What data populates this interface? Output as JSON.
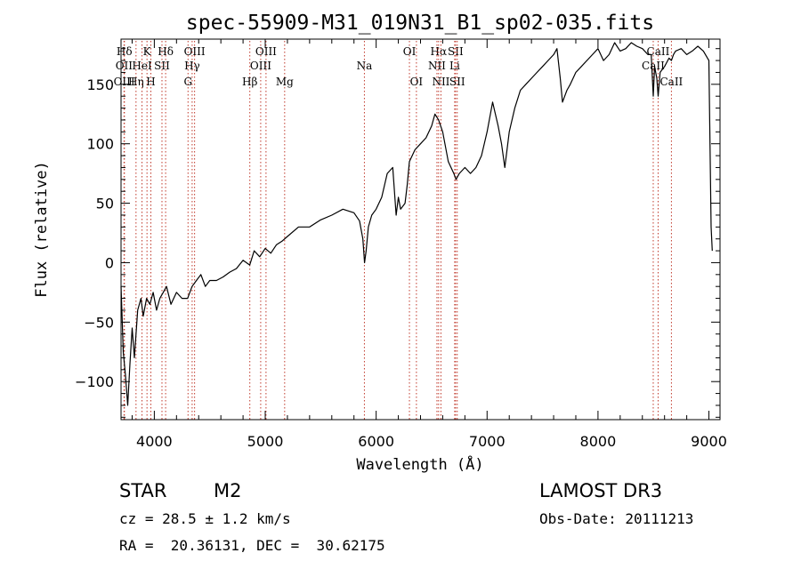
{
  "chart_data": {
    "type": "line",
    "title": "spec-55909-M31_019N31_B1_sp02-035.fits",
    "xlabel": "Wavelength (Å)",
    "ylabel": "Flux (relative)",
    "xlim": [
      3700,
      9100
    ],
    "ylim": [
      -132,
      188
    ],
    "xticks": [
      4000,
      5000,
      6000,
      7000,
      8000,
      9000
    ],
    "yticks": [
      -100,
      -50,
      0,
      50,
      100,
      150
    ],
    "xtick_labels": [
      "4000",
      "5000",
      "6000",
      "7000",
      "8000",
      "9000"
    ],
    "ytick_labels": [
      "−100",
      "−50",
      "0",
      "50",
      "100",
      "150"
    ],
    "series": [
      {
        "name": "spectrum",
        "x": [
          3700,
          3720,
          3740,
          3760,
          3780,
          3800,
          3820,
          3850,
          3880,
          3900,
          3930,
          3960,
          3990,
          4020,
          4050,
          4080,
          4110,
          4150,
          4200,
          4250,
          4300,
          4340,
          4380,
          4420,
          4460,
          4500,
          4560,
          4620,
          4680,
          4740,
          4800,
          4860,
          4900,
          4950,
          5000,
          5050,
          5100,
          5150,
          5200,
          5300,
          5400,
          5500,
          5600,
          5700,
          5800,
          5850,
          5880,
          5895,
          5910,
          5930,
          5960,
          6000,
          6050,
          6100,
          6150,
          6180,
          6200,
          6220,
          6260,
          6280,
          6300,
          6350,
          6400,
          6450,
          6500,
          6530,
          6563,
          6600,
          6650,
          6700,
          6720,
          6750,
          6800,
          6850,
          6900,
          6950,
          7000,
          7050,
          7100,
          7130,
          7160,
          7200,
          7250,
          7300,
          7350,
          7400,
          7450,
          7500,
          7550,
          7600,
          7630,
          7660,
          7680,
          7700,
          7720,
          7750,
          7800,
          7850,
          7900,
          7950,
          8000,
          8050,
          8100,
          8150,
          8200,
          8250,
          8300,
          8350,
          8400,
          8450,
          8480,
          8498,
          8510,
          8530,
          8542,
          8560,
          8600,
          8640,
          8662,
          8680,
          8700,
          8750,
          8800,
          8850,
          8900,
          8950,
          9000,
          9020,
          9030
        ],
        "y": [
          -20,
          -75,
          -95,
          -120,
          -85,
          -55,
          -80,
          -40,
          -30,
          -45,
          -30,
          -35,
          -25,
          -40,
          -30,
          -25,
          -20,
          -35,
          -25,
          -30,
          -30,
          -20,
          -15,
          -10,
          -20,
          -15,
          -15,
          -12,
          -8,
          -5,
          2,
          -2,
          10,
          5,
          12,
          8,
          15,
          18,
          22,
          30,
          30,
          36,
          40,
          45,
          42,
          35,
          20,
          0,
          10,
          30,
          40,
          45,
          55,
          75,
          80,
          40,
          55,
          45,
          50,
          65,
          85,
          95,
          100,
          105,
          115,
          125,
          120,
          110,
          85,
          75,
          70,
          75,
          80,
          75,
          80,
          90,
          110,
          135,
          115,
          100,
          80,
          110,
          130,
          145,
          150,
          155,
          160,
          165,
          170,
          175,
          180,
          155,
          135,
          140,
          145,
          150,
          160,
          165,
          170,
          175,
          180,
          170,
          175,
          185,
          178,
          180,
          185,
          182,
          180,
          175,
          175,
          140,
          165,
          155,
          140,
          160,
          165,
          172,
          170,
          175,
          178,
          180,
          175,
          178,
          182,
          178,
          170,
          30,
          10
        ]
      }
    ],
    "lines": [
      {
        "label": "Hδ",
        "wave": 3730,
        "pos": "top"
      },
      {
        "label": "OII",
        "wave": 3727,
        "pos": "mid"
      },
      {
        "label": "OIII",
        "wave": 3729,
        "pos": "bot"
      },
      {
        "label": "K",
        "wave": 3934,
        "pos": "top"
      },
      {
        "label": "HeI",
        "wave": 3889,
        "pos": "mid"
      },
      {
        "label": "Hη",
        "wave": 3835,
        "pos": "bot"
      },
      {
        "label": "SII",
        "wave": 4069,
        "pos": "mid"
      },
      {
        "label": "H",
        "wave": 3969,
        "pos": "bot"
      },
      {
        "label": "Hδ",
        "wave": 4102,
        "pos": "top"
      },
      {
        "label": "OIII",
        "wave": 4363,
        "pos": "top"
      },
      {
        "label": "Hγ",
        "wave": 4341,
        "pos": "mid"
      },
      {
        "label": "G",
        "wave": 4304,
        "pos": "bot"
      },
      {
        "label": "Hβ",
        "wave": 4861,
        "pos": "bot"
      },
      {
        "label": "OIII",
        "wave": 5007,
        "pos": "top"
      },
      {
        "label": "OIII",
        "wave": 4959,
        "pos": "mid"
      },
      {
        "label": "Mg",
        "wave": 5175,
        "pos": "bot"
      },
      {
        "label": "Na",
        "wave": 5894,
        "pos": "mid"
      },
      {
        "label": "OI",
        "wave": 6300,
        "pos": "top"
      },
      {
        "label": "OI",
        "wave": 6363,
        "pos": "bot"
      },
      {
        "label": "Hα",
        "wave": 6563,
        "pos": "top"
      },
      {
        "label": "NII",
        "wave": 6548,
        "pos": "mid"
      },
      {
        "label": "NII",
        "wave": 6584,
        "pos": "bot"
      },
      {
        "label": "SII",
        "wave": 6716,
        "pos": "top"
      },
      {
        "label": "Li",
        "wave": 6708,
        "pos": "mid"
      },
      {
        "label": "SII",
        "wave": 6731,
        "pos": "bot"
      },
      {
        "label": "CaII",
        "wave": 8542,
        "pos": "top"
      },
      {
        "label": "CaII",
        "wave": 8498,
        "pos": "mid"
      },
      {
        "label": "CaII",
        "wave": 8662,
        "pos": "bot"
      }
    ]
  },
  "info": {
    "object_class": "STAR",
    "subclass": "M2",
    "survey": "LAMOST DR3",
    "cz": "cz = 28.5 ± 1.2 km/s",
    "obs_date": "Obs-Date: 20111213",
    "coords": "RA =  20.36131, DEC =  30.62175"
  },
  "colors": {
    "line_marker": "#c0392b",
    "spectrum": "#000000",
    "axis": "#000000"
  }
}
